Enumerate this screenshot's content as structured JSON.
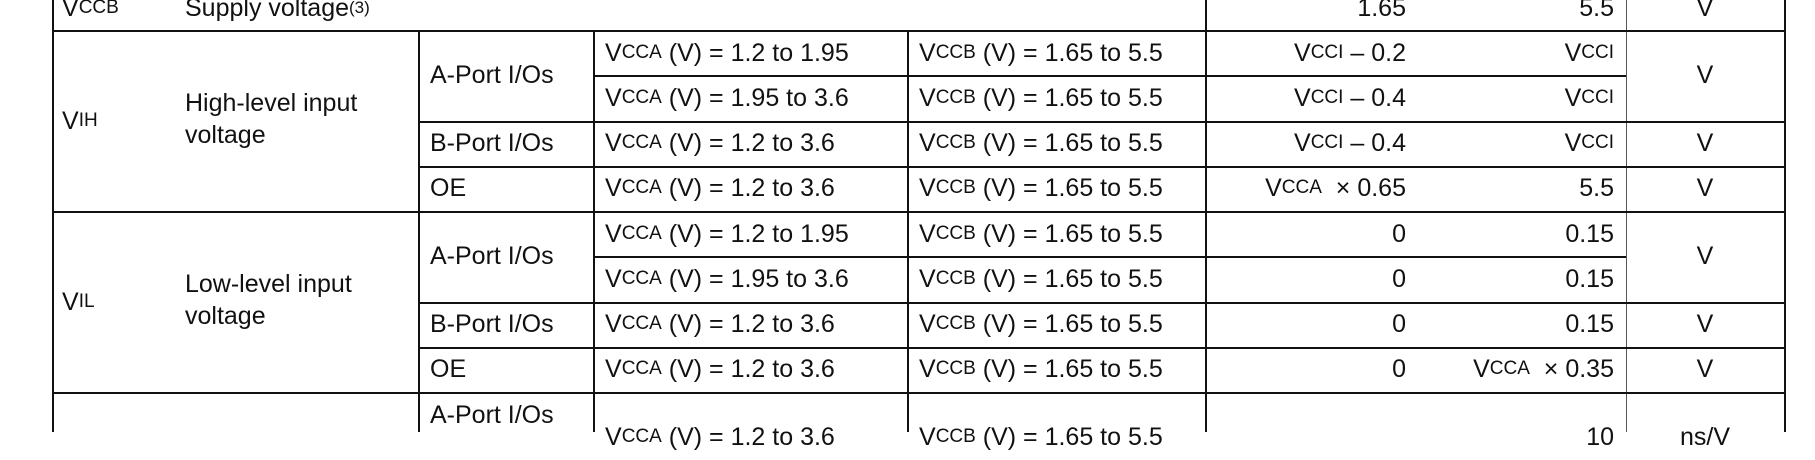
{
  "supply_row": {
    "symbol": {
      "sym": "V",
      "sub": "CCB"
    },
    "description": "Supply voltage",
    "footnote": "(3)",
    "min": "1.65",
    "max": "5.5",
    "unit": "V"
  },
  "vih": {
    "symbol": {
      "sym": "V",
      "sub": "IH"
    },
    "description_line1": "High-level input",
    "description_line2": "voltage",
    "rows": [
      {
        "port": "A-Port I/Os",
        "vcca": {
          "sym": "V",
          "sub": "CCA",
          "text": " (V) = 1.2 to 1.95"
        },
        "vccb": {
          "sym": "V",
          "sub": "CCB",
          "text": " (V) = 1.65 to 5.5"
        },
        "min": {
          "sym": "V",
          "sub": "CCI",
          "text": " – 0.2"
        },
        "max": {
          "sym": "V",
          "sub": "CCI",
          "text": ""
        }
      },
      {
        "port": "",
        "vcca": {
          "sym": "V",
          "sub": "CCA",
          "text": " (V) = 1.95 to 3.6"
        },
        "vccb": {
          "sym": "V",
          "sub": "CCB",
          "text": " (V) = 1.65 to 5.5"
        },
        "min": {
          "sym": "V",
          "sub": "CCI",
          "text": " – 0.4"
        },
        "max": {
          "sym": "V",
          "sub": "CCI",
          "text": ""
        }
      },
      {
        "port": "B-Port I/Os",
        "vcca": {
          "sym": "V",
          "sub": "CCA",
          "text": " (V) = 1.2 to 3.6"
        },
        "vccb": {
          "sym": "V",
          "sub": "CCB",
          "text": " (V) = 1.65 to 5.5"
        },
        "min": {
          "sym": "V",
          "sub": "CCI",
          "text": " – 0.4"
        },
        "max": {
          "sym": "V",
          "sub": "CCI",
          "text": ""
        }
      },
      {
        "port": "OE",
        "vcca": {
          "sym": "V",
          "sub": "CCA",
          "text": " (V) = 1.2 to 3.6"
        },
        "vccb": {
          "sym": "V",
          "sub": "CCB",
          "text": " (V) = 1.65 to 5.5"
        },
        "min": {
          "sym": "V",
          "sub": "CCA",
          "text": "  × 0.65"
        },
        "max": {
          "sym": "",
          "sub": "",
          "text": "5.5"
        }
      }
    ],
    "units": [
      "V",
      "V",
      "V"
    ]
  },
  "vil": {
    "symbol": {
      "sym": "V",
      "sub": "IL"
    },
    "description_line1": "Low-level input",
    "description_line2": "voltage",
    "rows": [
      {
        "port": "A-Port I/Os",
        "vcca": {
          "sym": "V",
          "sub": "CCA",
          "text": " (V) = 1.2 to 1.95"
        },
        "vccb": {
          "sym": "V",
          "sub": "CCB",
          "text": " (V) = 1.65 to 5.5"
        },
        "min": {
          "sym": "",
          "sub": "",
          "text": "0"
        },
        "max": {
          "sym": "",
          "sub": "",
          "text": "0.15"
        }
      },
      {
        "port": "",
        "vcca": {
          "sym": "V",
          "sub": "CCA",
          "text": " (V) = 1.95 to 3.6"
        },
        "vccb": {
          "sym": "V",
          "sub": "CCB",
          "text": " (V) = 1.65 to 5.5"
        },
        "min": {
          "sym": "",
          "sub": "",
          "text": "0"
        },
        "max": {
          "sym": "",
          "sub": "",
          "text": "0.15"
        }
      },
      {
        "port": "B-Port I/Os",
        "vcca": {
          "sym": "V",
          "sub": "CCA",
          "text": " (V) = 1.2 to 3.6"
        },
        "vccb": {
          "sym": "V",
          "sub": "CCB",
          "text": " (V) = 1.65 to 5.5"
        },
        "min": {
          "sym": "",
          "sub": "",
          "text": "0"
        },
        "max": {
          "sym": "",
          "sub": "",
          "text": "0.15"
        }
      },
      {
        "port": "OE",
        "vcca": {
          "sym": "V",
          "sub": "CCA",
          "text": " (V) = 1.2 to 3.6"
        },
        "vccb": {
          "sym": "V",
          "sub": "CCB",
          "text": " (V) = 1.65 to 5.5"
        },
        "min": {
          "sym": "",
          "sub": "",
          "text": "0"
        },
        "max": {
          "sym": "V",
          "sub": "CCA",
          "text": "  × 0.35"
        }
      }
    ],
    "units": [
      "V",
      "V",
      "V"
    ]
  },
  "partial_row": {
    "port": "A-Port I/Os",
    "vcca": {
      "sym": "V",
      "sub": "CCA",
      "text": " (V) = 1.2 to 3.6"
    },
    "vccb": {
      "sym": "V",
      "sub": "CCB",
      "text": " (V) = 1.65 to 5.5"
    },
    "max": "10",
    "unit": "ns/V"
  }
}
